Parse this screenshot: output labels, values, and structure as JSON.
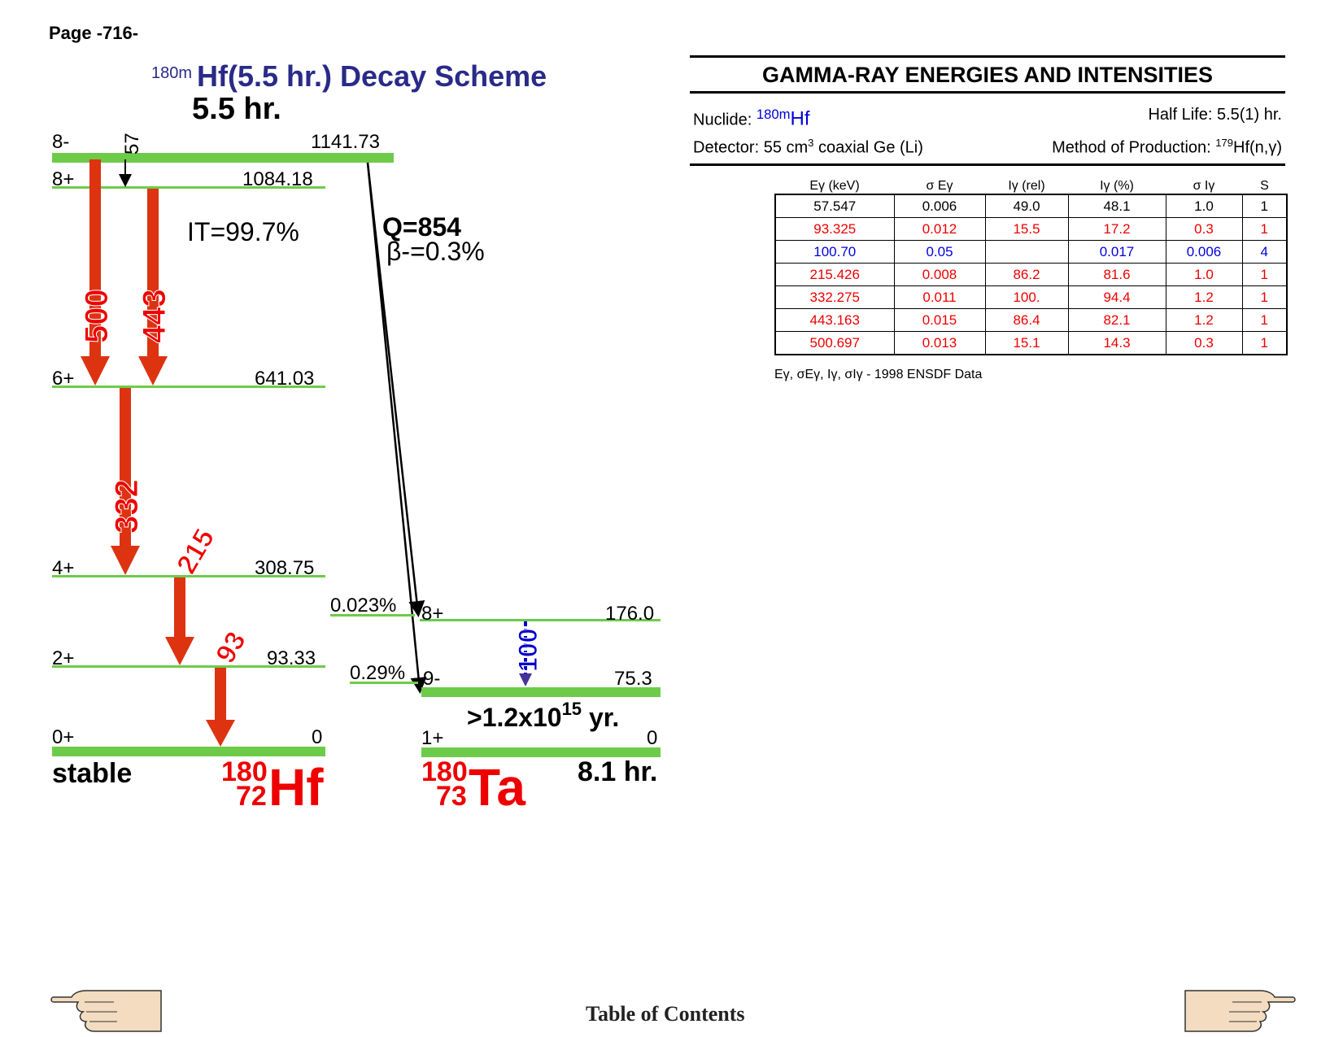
{
  "page": {
    "label": "Page -716-"
  },
  "scheme": {
    "title_sup": "180m",
    "title_main": "Hf(5.5 hr.) Decay Scheme",
    "parent_halflife": "5.5 hr.",
    "it_branch": "IT=99.7%",
    "q_value": "Q=854",
    "beta_branch": "β-=0.3%",
    "hf_levels": [
      {
        "spin": "8-",
        "energy": "1141.73"
      },
      {
        "spin": "8+",
        "energy": "1084.18"
      },
      {
        "spin": "6+",
        "energy": "641.03"
      },
      {
        "spin": "4+",
        "energy": "308.75"
      },
      {
        "spin": "2+",
        "energy": "93.33"
      },
      {
        "spin": "0+",
        "energy": "0"
      }
    ],
    "ta_levels": [
      {
        "spin": "8+",
        "energy": "176.0",
        "feed": "0.023%"
      },
      {
        "spin": "9-",
        "energy": "75.3",
        "feed": "0.29%"
      },
      {
        "spin": "1+",
        "energy": "0"
      }
    ],
    "gamma_labels": [
      "57",
      "500",
      "443",
      "332",
      "215",
      "93",
      "100"
    ],
    "hf_ground_note": "stable",
    "hf_nuclide": {
      "mass": "180",
      "z": "72",
      "symbol": "Hf"
    },
    "ta_nuclide": {
      "mass": "180",
      "z": "73",
      "symbol": "Ta"
    },
    "ta_isomer_halflife_base": ">1.2x10",
    "ta_isomer_halflife_exp": "15",
    "ta_isomer_halflife_unit": " yr.",
    "ta_ground_halflife": "8.1 hr.",
    "colors": {
      "level": "#6ecb4a",
      "gamma": "#dd3311",
      "blue_gamma": "#0000cc",
      "title": "#2a2a88",
      "nuclide": "#ee0000"
    }
  },
  "panel": {
    "title": "GAMMA-RAY ENERGIES AND INTENSITIES",
    "nuclide_label": "Nuclide: ",
    "nuclide_sup": "180m",
    "nuclide_sym": "Hf",
    "half_life": "Half Life: 5.5(1) hr.",
    "detector_a": "Detector: 55 cm",
    "detector_sup": "3",
    "detector_b": " coaxial Ge (Li)",
    "production_a": "Method of Production: ",
    "production_sup": "179",
    "production_b": "Hf(n,γ)",
    "columns": [
      "Eγ (keV)",
      "σ Eγ",
      "Iγ (rel)",
      "Iγ (%)",
      "σ Iγ",
      "S"
    ],
    "rows": [
      {
        "color": "black",
        "cells": [
          "57.547",
          "0.006",
          "49.0",
          "48.1",
          "1.0",
          "1"
        ]
      },
      {
        "color": "red",
        "cells": [
          "93.325",
          "0.012",
          "15.5",
          "17.2",
          "0.3",
          "1"
        ]
      },
      {
        "color": "blue",
        "cells": [
          "100.70",
          "0.05",
          "",
          "0.017",
          "0.006",
          "4"
        ]
      },
      {
        "color": "red",
        "cells": [
          "215.426",
          "0.008",
          "86.2",
          "81.6",
          "1.0",
          "1"
        ]
      },
      {
        "color": "red",
        "cells": [
          "332.275",
          "0.011",
          "100.",
          "94.4",
          "1.2",
          "1"
        ]
      },
      {
        "color": "red",
        "cells": [
          "443.163",
          "0.015",
          "86.4",
          "82.1",
          "1.2",
          "1"
        ]
      },
      {
        "color": "red",
        "cells": [
          "500.697",
          "0.013",
          "15.1",
          "14.3",
          "0.3",
          "1"
        ]
      }
    ],
    "note_symbols": "Eγ, σEγ, Iγ, σIγ - ",
    "note_source": "1998 ENSDF Data"
  },
  "footer": {
    "toc": "Table of Contents",
    "left_icon": "pointing-hand-left-icon",
    "right_icon": "pointing-hand-right-icon"
  }
}
